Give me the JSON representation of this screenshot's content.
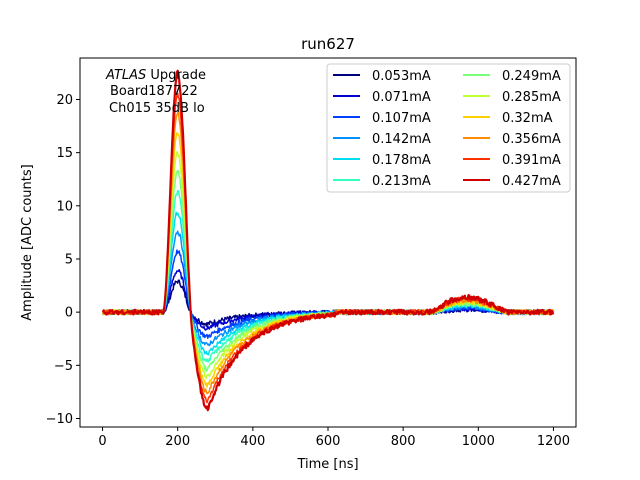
{
  "chart_data": {
    "type": "line",
    "title": "run627",
    "xlabel": "Time [ns]",
    "ylabel": "Amplitude [ADC counts]",
    "xlim": [
      -60,
      1260
    ],
    "ylim": [
      -10.8,
      23.9
    ],
    "xticks": [
      0,
      200,
      400,
      600,
      800,
      1000,
      1200
    ],
    "yticks": [
      -10,
      -5,
      0,
      5,
      10,
      15,
      20
    ],
    "grid": false,
    "legend_position": "top-right",
    "legend_columns": 2,
    "annotation": {
      "italic": "ATLAS",
      "line1_rest": " Upgrade",
      "line2": "Board187722",
      "line3": "Ch015 35dB lo"
    },
    "pulse_shape": {
      "x": [
        0,
        160,
        172,
        186,
        200,
        212,
        224,
        236,
        250,
        262,
        272,
        286,
        300,
        330,
        370,
        420,
        480,
        560,
        640,
        760,
        850,
        870,
        900,
        930,
        970,
        1010,
        1060,
        1200
      ],
      "description_units": "normalized amplitude; series peak/undershoot scale it"
    },
    "series": [
      {
        "name": "0.053mA",
        "color": "#00007f",
        "peak": 2.9,
        "undershoot": -1.1,
        "bump": 0.25
      },
      {
        "name": "0.071mA",
        "color": "#0000d0",
        "peak": 3.9,
        "undershoot": -1.5,
        "bump": 0.3
      },
      {
        "name": "0.107mA",
        "color": "#0040ff",
        "peak": 5.7,
        "undershoot": -2.3,
        "bump": 0.4
      },
      {
        "name": "0.142mA",
        "color": "#0090ff",
        "peak": 7.6,
        "undershoot": -3.1,
        "bump": 0.5
      },
      {
        "name": "0.178mA",
        "color": "#00dcf0",
        "peak": 9.4,
        "undershoot": -3.9,
        "bump": 0.6
      },
      {
        "name": "0.213mA",
        "color": "#30ffc0",
        "peak": 11.3,
        "undershoot": -4.6,
        "bump": 0.7
      },
      {
        "name": "0.249mA",
        "color": "#7cff79",
        "peak": 13.2,
        "undershoot": -5.4,
        "bump": 0.8
      },
      {
        "name": "0.285mA",
        "color": "#c0ff30",
        "peak": 15.0,
        "undershoot": -6.1,
        "bump": 0.9
      },
      {
        "name": "0.32mA",
        "color": "#ffd000",
        "peak": 16.9,
        "undershoot": -6.9,
        "bump": 1.0
      },
      {
        "name": "0.356mA",
        "color": "#ff8c00",
        "peak": 18.8,
        "undershoot": -7.6,
        "bump": 1.1
      },
      {
        "name": "0.391mA",
        "color": "#ff3000",
        "peak": 20.6,
        "undershoot": -8.4,
        "bump": 1.25
      },
      {
        "name": "0.427mA",
        "color": "#d00000",
        "peak": 22.5,
        "undershoot": -9.1,
        "bump": 1.4
      }
    ]
  }
}
